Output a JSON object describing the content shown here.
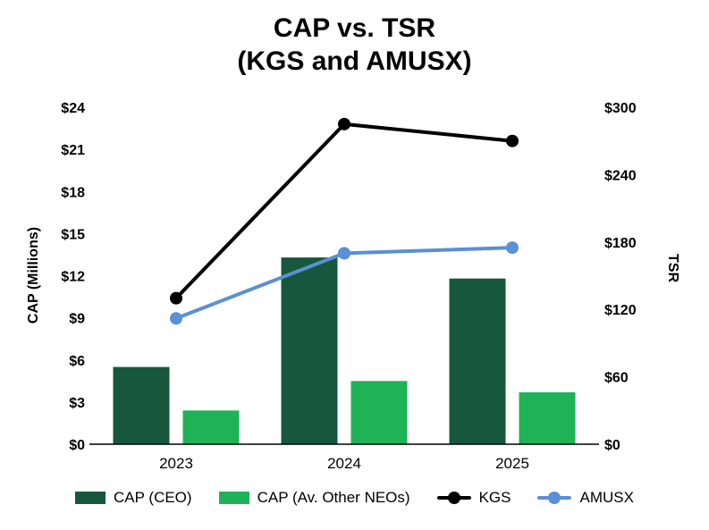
{
  "title": {
    "line1": "CAP vs. TSR",
    "line2": "(KGS and AMUSX)"
  },
  "chart_data": {
    "type": "combo (grouped bars + lines, dual y-axis)",
    "title": "CAP vs. TSR (KGS and AMUSX)",
    "categories": [
      "2023",
      "2024",
      "2025"
    ],
    "series": [
      {
        "name": "CAP (CEO)",
        "type": "bar",
        "axis": "left",
        "color": "#16573D",
        "values": [
          5.5,
          13.3,
          11.8
        ]
      },
      {
        "name": "CAP (Av. Other NEOs)",
        "type": "bar",
        "axis": "left",
        "color": "#1EB357",
        "values": [
          2.4,
          4.5,
          3.7
        ]
      },
      {
        "name": "KGS",
        "type": "line",
        "axis": "right",
        "color": "#000000",
        "values": [
          130,
          285,
          270
        ]
      },
      {
        "name": "AMUSX",
        "type": "line",
        "axis": "right",
        "color": "#5B8FD6",
        "values": [
          112,
          170,
          175
        ]
      }
    ],
    "left_axis": {
      "label": "CAP (Millions)",
      "min": 0,
      "max": 24,
      "step": 3,
      "prefix": "$",
      "tick_labels": [
        "$0",
        "$3",
        "$6",
        "$9",
        "$12",
        "$15",
        "$18",
        "$21",
        "$24"
      ]
    },
    "right_axis": {
      "label": "TSR",
      "min": 0,
      "max": 300,
      "step": 60,
      "prefix": "$",
      "tick_labels": [
        "$0",
        "$60",
        "$120",
        "$180",
        "$240",
        "$300"
      ]
    },
    "legend_position": "bottom",
    "grid": false
  }
}
